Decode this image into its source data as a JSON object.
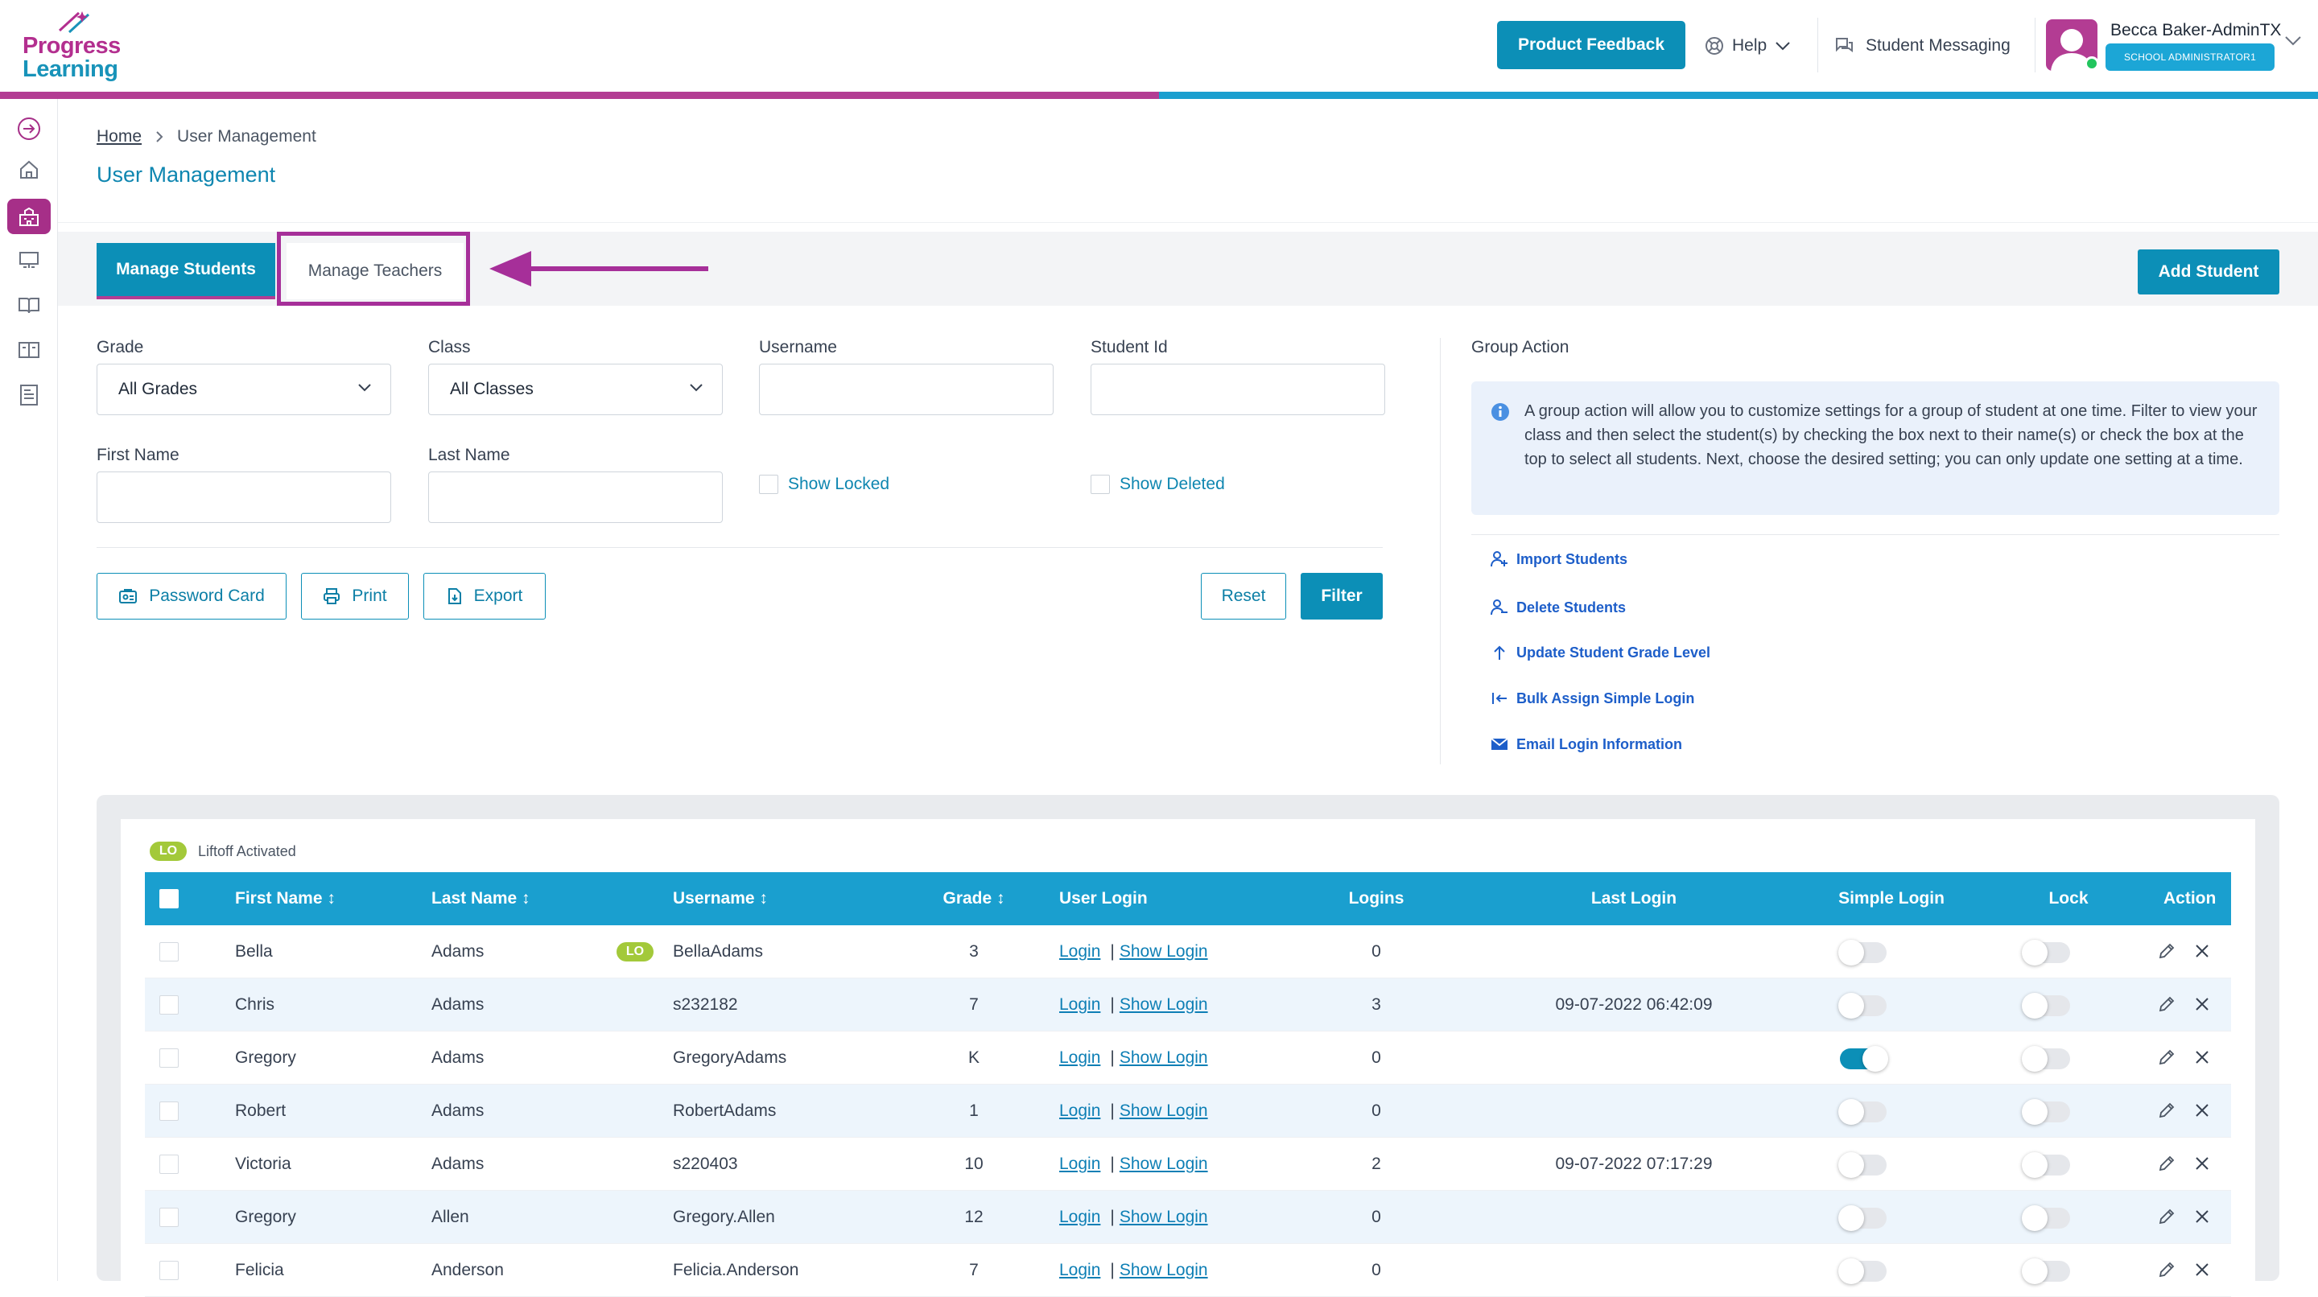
{
  "brand": {
    "line1": "Progress",
    "line2": "Learning"
  },
  "header": {
    "product_feedback": "Product Feedback",
    "help": "Help",
    "student_messaging": "Student Messaging",
    "user_name": "Becca Baker-AdminTX",
    "user_role": "SCHOOL ADMINISTRATOR1"
  },
  "breadcrumb": {
    "home": "Home",
    "current": "User Management"
  },
  "page_title": "User Management",
  "tabs": {
    "manage_students": "Manage Students",
    "manage_teachers": "Manage Teachers"
  },
  "add_student": "Add Student",
  "filters": {
    "grade_label": "Grade",
    "grade_value": "All Grades",
    "class_label": "Class",
    "class_value": "All Classes",
    "username_label": "Username",
    "student_id_label": "Student Id",
    "first_name_label": "First Name",
    "last_name_label": "Last Name",
    "show_locked": "Show Locked",
    "show_deleted": "Show Deleted"
  },
  "buttons": {
    "password_card": "Password Card",
    "print": "Print",
    "export": "Export",
    "reset": "Reset",
    "filter": "Filter"
  },
  "group_action": {
    "title": "Group Action",
    "info": "A group action will allow you to customize settings for a group of student at one time. Filter to view your class and then select the student(s) by checking the box next to their name(s) or check the box at the top to select all students. Next, choose the desired setting; you can only update one setting at a time.",
    "import_students": "Import Students",
    "delete_students": "Delete Students",
    "update_grade": "Update Student Grade Level",
    "bulk_assign": "Bulk Assign Simple Login",
    "email_login": "Email Login Information"
  },
  "legend": {
    "badge": "LO",
    "text": "Liftoff Activated"
  },
  "table": {
    "headers": {
      "first_name": "First Name ↕",
      "last_name": "Last Name ↕",
      "username": "Username ↕",
      "grade": "Grade ↕",
      "user_login": "User Login",
      "logins": "Logins",
      "last_login": "Last Login",
      "simple_login": "Simple Login",
      "lock": "Lock",
      "action": "Action"
    },
    "login_link": "Login",
    "show_login_link": "Show Login",
    "rows": [
      {
        "first": "Bella",
        "last": "Adams",
        "lo": "LO",
        "username": "BellaAdams",
        "grade": "3",
        "logins": "0",
        "last_login": "",
        "simple": false,
        "lock": false
      },
      {
        "first": "Chris",
        "last": "Adams",
        "lo": "",
        "username": "s232182",
        "grade": "7",
        "logins": "3",
        "last_login": "09-07-2022 06:42:09",
        "simple": false,
        "lock": false
      },
      {
        "first": "Gregory",
        "last": "Adams",
        "lo": "",
        "username": "GregoryAdams",
        "grade": "K",
        "logins": "0",
        "last_login": "",
        "simple": true,
        "lock": false
      },
      {
        "first": "Robert",
        "last": "Adams",
        "lo": "",
        "username": "RobertAdams",
        "grade": "1",
        "logins": "0",
        "last_login": "",
        "simple": false,
        "lock": false
      },
      {
        "first": "Victoria",
        "last": "Adams",
        "lo": "",
        "username": "s220403",
        "grade": "10",
        "logins": "2",
        "last_login": "09-07-2022 07:17:29",
        "simple": false,
        "lock": false
      },
      {
        "first": "Gregory",
        "last": "Allen",
        "lo": "",
        "username": "Gregory.Allen",
        "grade": "12",
        "logins": "0",
        "last_login": "",
        "simple": false,
        "lock": false
      },
      {
        "first": "Felicia",
        "last": "Anderson",
        "lo": "",
        "username": "Felicia.Anderson",
        "grade": "7",
        "logins": "0",
        "last_login": "",
        "simple": false,
        "lock": false
      }
    ]
  }
}
